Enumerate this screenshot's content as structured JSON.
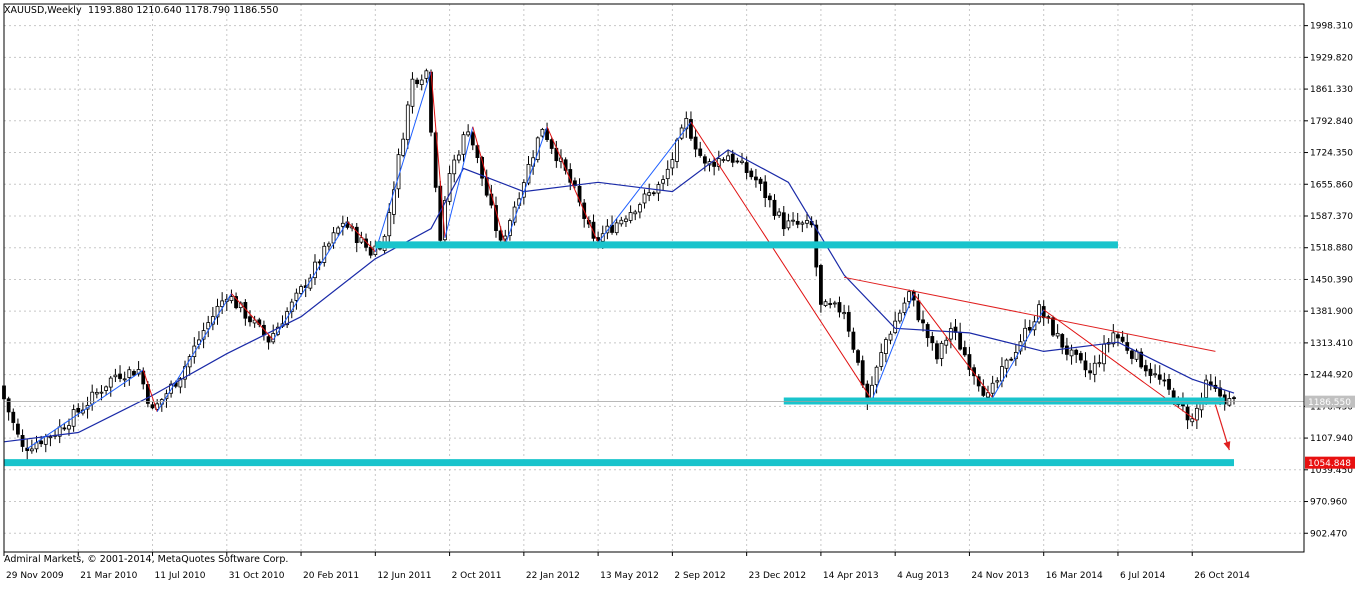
{
  "header": {
    "symbol": "XAUUSD,Weekly",
    "ohlc": "1193.880 1210.640 1178.790 1186.550"
  },
  "copyright": "Admiral Markets, © 2001-2014, MetaQuotes Software Corp.",
  "colors": {
    "background": "#ffffff",
    "grid": "#c8c8c8",
    "candle": "#000000",
    "moving_average": "#1a2aa8",
    "zigzag_up": "#1e5fff",
    "zigzag_down": "#e01010",
    "support_resistance": "#19c4cc",
    "trendline": "#e02020",
    "current_price_tag": "#c0c0c0",
    "target_price_tag": "#e81010"
  },
  "chart_data": {
    "type": "candlestick",
    "title": "XAUUSD,Weekly",
    "timeframe": "Weekly",
    "ylim": [
      862.0,
      2045.0
    ],
    "y_ticks": [
      "1998.310",
      "1929.820",
      "1861.330",
      "1792.840",
      "1724.350",
      "1655.860",
      "1587.370",
      "1518.880",
      "1450.390",
      "1381.900",
      "1313.410",
      "1244.920",
      "1176.430",
      "1107.940",
      "1039.450",
      "970.960",
      "902.470"
    ],
    "x_ticks": [
      "29 Nov 2009",
      "21 Mar 2010",
      "11 Jul 2010",
      "31 Oct 2010",
      "20 Feb 2011",
      "12 Jun 2011",
      "2 Oct 2011",
      "22 Jan 2012",
      "13 May 2012",
      "2 Sep 2012",
      "23 Dec 2012",
      "14 Apr 2013",
      "4 Aug 2013",
      "24 Nov 2013",
      "16 Mar 2014",
      "6 Jul 2014",
      "26 Oct 2014"
    ],
    "x_range": [
      "29 Nov 2009",
      "28 Dec 2014"
    ],
    "price_path": [
      {
        "date": "29 Nov 2009",
        "price": 1220
      },
      {
        "date": "3 Jan 2010",
        "price": 1085
      },
      {
        "date": "21 Feb 2010",
        "price": 1120
      },
      {
        "date": "4 Apr 2010",
        "price": 1175
      },
      {
        "date": "23 May 2010",
        "price": 1245
      },
      {
        "date": "27 Jun 2010",
        "price": 1255
      },
      {
        "date": "18 Jul 2010",
        "price": 1165
      },
      {
        "date": "29 Aug 2010",
        "price": 1245
      },
      {
        "date": "3 Oct 2010",
        "price": 1340
      },
      {
        "date": "7 Nov 2010",
        "price": 1420
      },
      {
        "date": "9 Jan 2011",
        "price": 1320
      },
      {
        "date": "20 Feb 2011",
        "price": 1410
      },
      {
        "date": "1 May 2011",
        "price": 1575
      },
      {
        "date": "12 Jun 2011",
        "price": 1510
      },
      {
        "date": "3 Jul 2011",
        "price": 1540
      },
      {
        "date": "14 Aug 2011",
        "price": 1880
      },
      {
        "date": "4 Sep 2011",
        "price": 1900
      },
      {
        "date": "25 Sep 2011",
        "price": 1540
      },
      {
        "date": "9 Oct 2011",
        "price": 1680
      },
      {
        "date": "6 Nov 2011",
        "price": 1780
      },
      {
        "date": "25 Dec 2011",
        "price": 1525
      },
      {
        "date": "26 Feb 2012",
        "price": 1780
      },
      {
        "date": "15 Apr 2012",
        "price": 1640
      },
      {
        "date": "13 May 2012",
        "price": 1530
      },
      {
        "date": "26 Aug 2012",
        "price": 1660
      },
      {
        "date": "30 Sep 2012",
        "price": 1790
      },
      {
        "date": "28 Oct 2012",
        "price": 1695
      },
      {
        "date": "2 Dec 2012",
        "price": 1720
      },
      {
        "date": "13 Jan 2013",
        "price": 1665
      },
      {
        "date": "24 Feb 2013",
        "price": 1570
      },
      {
        "date": "7 Apr 2013",
        "price": 1565
      },
      {
        "date": "21 Apr 2013",
        "price": 1390
      },
      {
        "date": "26 May 2013",
        "price": 1385
      },
      {
        "date": "30 Jun 2013",
        "price": 1190
      },
      {
        "date": "28 Jul 2013",
        "price": 1320
      },
      {
        "date": "1 Sep 2013",
        "price": 1420
      },
      {
        "date": "13 Oct 2013",
        "price": 1280
      },
      {
        "date": "3 Nov 2013",
        "price": 1345
      },
      {
        "date": "29 Dec 2013",
        "price": 1195
      },
      {
        "date": "16 Feb 2014",
        "price": 1320
      },
      {
        "date": "16 Mar 2014",
        "price": 1385
      },
      {
        "date": "27 Apr 2014",
        "price": 1295
      },
      {
        "date": "1 Jun 2014",
        "price": 1245
      },
      {
        "date": "6 Jul 2014",
        "price": 1335
      },
      {
        "date": "21 Sep 2014",
        "price": 1220
      },
      {
        "date": "2 Nov 2014",
        "price": 1145
      },
      {
        "date": "23 Nov 2014",
        "price": 1220
      },
      {
        "date": "28 Dec 2014",
        "price": 1186.55
      }
    ],
    "moving_average": [
      {
        "date": "29 Nov 2009",
        "price": 1100
      },
      {
        "date": "21 Mar 2010",
        "price": 1120
      },
      {
        "date": "11 Jul 2010",
        "price": 1200
      },
      {
        "date": "31 Oct 2010",
        "price": 1290
      },
      {
        "date": "20 Feb 2011",
        "price": 1370
      },
      {
        "date": "12 Jun 2011",
        "price": 1495
      },
      {
        "date": "4 Sep 2011",
        "price": 1560
      },
      {
        "date": "23 Oct 2011",
        "price": 1690
      },
      {
        "date": "22 Jan 2012",
        "price": 1640
      },
      {
        "date": "13 May 2012",
        "price": 1660
      },
      {
        "date": "2 Sep 2012",
        "price": 1640
      },
      {
        "date": "25 Nov 2012",
        "price": 1730
      },
      {
        "date": "24 Feb 2013",
        "price": 1660
      },
      {
        "date": "19 May 2013",
        "price": 1460
      },
      {
        "date": "4 Aug 2013",
        "price": 1345
      },
      {
        "date": "24 Nov 2013",
        "price": 1335
      },
      {
        "date": "16 Mar 2014",
        "price": 1295
      },
      {
        "date": "6 Jul 2014",
        "price": 1315
      },
      {
        "date": "26 Oct 2014",
        "price": 1235
      },
      {
        "date": "28 Dec 2014",
        "price": 1205
      }
    ],
    "zigzag": [
      {
        "date": "3 Jan 2010",
        "price": 1085
      },
      {
        "date": "27 Jun 2010",
        "price": 1255
      },
      {
        "date": "18 Jul 2010",
        "price": 1165
      },
      {
        "date": "7 Nov 2010",
        "price": 1420
      },
      {
        "date": "9 Jan 2011",
        "price": 1320
      },
      {
        "date": "1 May 2011",
        "price": 1575
      },
      {
        "date": "12 Jun 2011",
        "price": 1510
      },
      {
        "date": "4 Sep 2011",
        "price": 1900
      },
      {
        "date": "25 Sep 2011",
        "price": 1540
      },
      {
        "date": "6 Nov 2011",
        "price": 1780
      },
      {
        "date": "25 Dec 2011",
        "price": 1525
      },
      {
        "date": "26 Feb 2012",
        "price": 1780
      },
      {
        "date": "13 May 2012",
        "price": 1530
      },
      {
        "date": "30 Sep 2012",
        "price": 1790
      },
      {
        "date": "30 Jun 2013",
        "price": 1190
      },
      {
        "date": "1 Sep 2013",
        "price": 1420
      },
      {
        "date": "29 Dec 2013",
        "price": 1195
      },
      {
        "date": "16 Mar 2014",
        "price": 1385
      },
      {
        "date": "2 Nov 2014",
        "price": 1145
      }
    ],
    "support_zones": [
      {
        "price": 1525,
        "from": "12 Jun 2011",
        "to": "6 Jul 2014"
      },
      {
        "price": 1188,
        "from": "17 Feb 2013",
        "to": "14 Dec 2014"
      },
      {
        "price": 1054.85,
        "from": "29 Nov 2009",
        "to": "28 Dec 2014"
      }
    ],
    "trendline": {
      "from_date": "19 May 2013",
      "from_price": 1455,
      "to_date": "30 Nov 2014",
      "to_price": 1295
    },
    "projection": {
      "from_date": "30 Nov 2014",
      "from_price": 1180,
      "to_date": "21 Dec 2014",
      "to_price": 1082
    },
    "current_price": "1186.550",
    "target_price": "1054.848"
  }
}
